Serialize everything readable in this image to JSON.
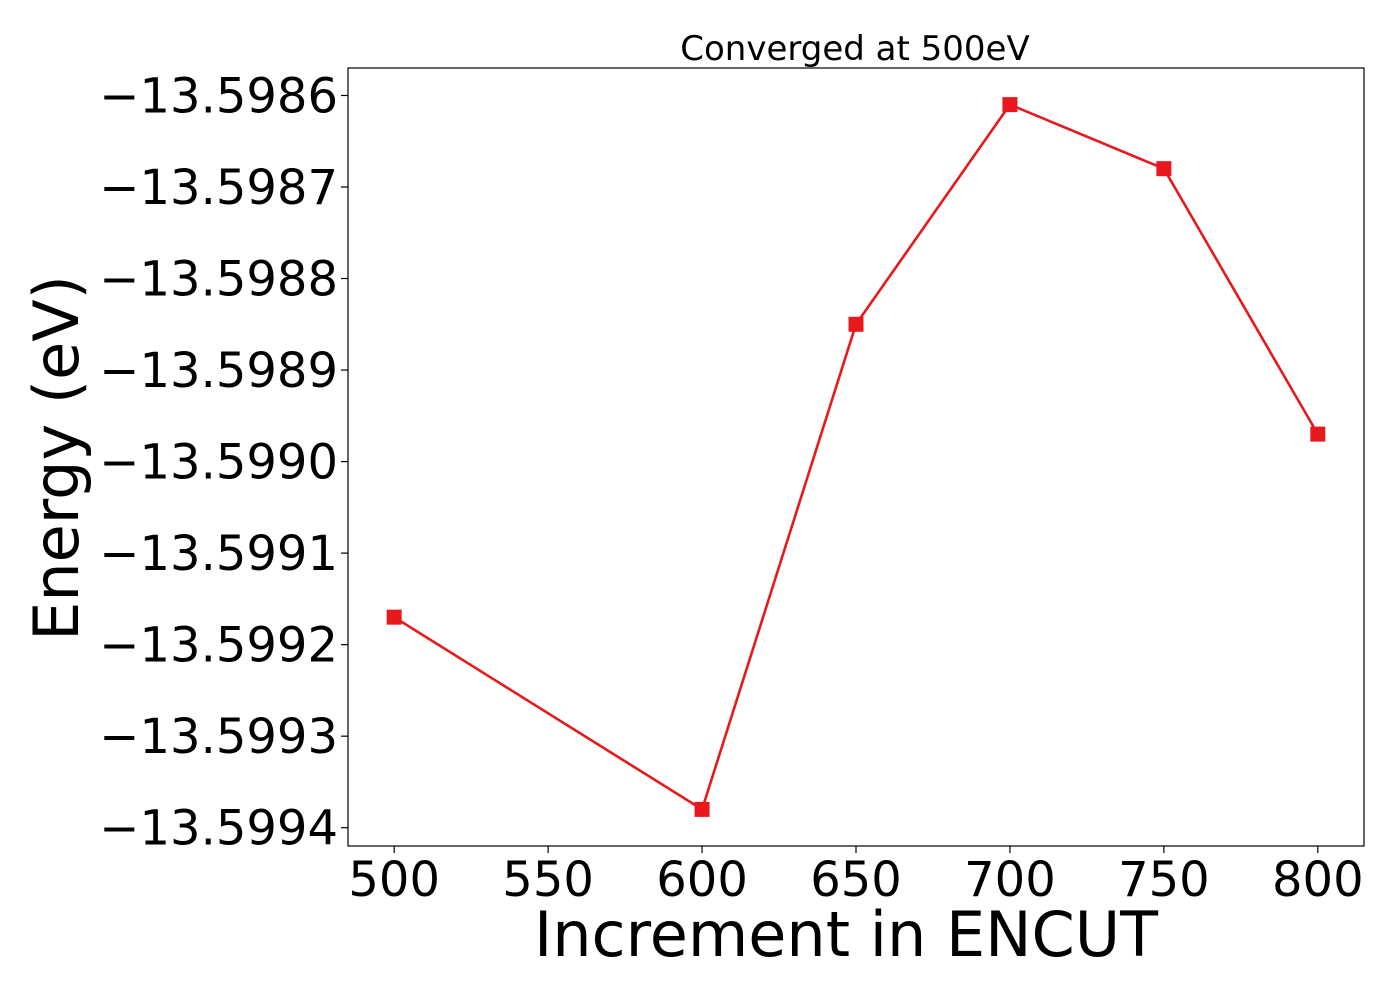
{
  "chart_data": {
    "type": "line",
    "title": "Converged at 500eV",
    "xlabel": "Increment in ENCUT",
    "ylabel": "Energy (eV)",
    "x": [
      500,
      600,
      650,
      700,
      750,
      800
    ],
    "series": [
      {
        "y": [
          -13.59917,
          -13.59938,
          -13.59885,
          -13.59861,
          -13.59868,
          -13.59897
        ],
        "color": "#e8191d",
        "marker": "square"
      }
    ],
    "xlim": [
      485,
      815
    ],
    "ylim": [
      -13.59942,
      -13.59857
    ],
    "xticks": [
      500,
      550,
      600,
      650,
      700,
      750,
      800
    ],
    "xtick_labels": [
      "500",
      "550",
      "600",
      "650",
      "700",
      "750",
      "800"
    ],
    "yticks": [
      -13.5994,
      -13.5993,
      -13.5992,
      -13.5991,
      -13.599,
      -13.5989,
      -13.5988,
      -13.5987,
      -13.5986
    ],
    "ytick_labels": [
      "−13.5994",
      "−13.5993",
      "−13.5992",
      "−13.5991",
      "−13.5990",
      "−13.5989",
      "−13.5988",
      "−13.5987",
      "−13.5986"
    ],
    "grid": false,
    "legend": "none"
  }
}
